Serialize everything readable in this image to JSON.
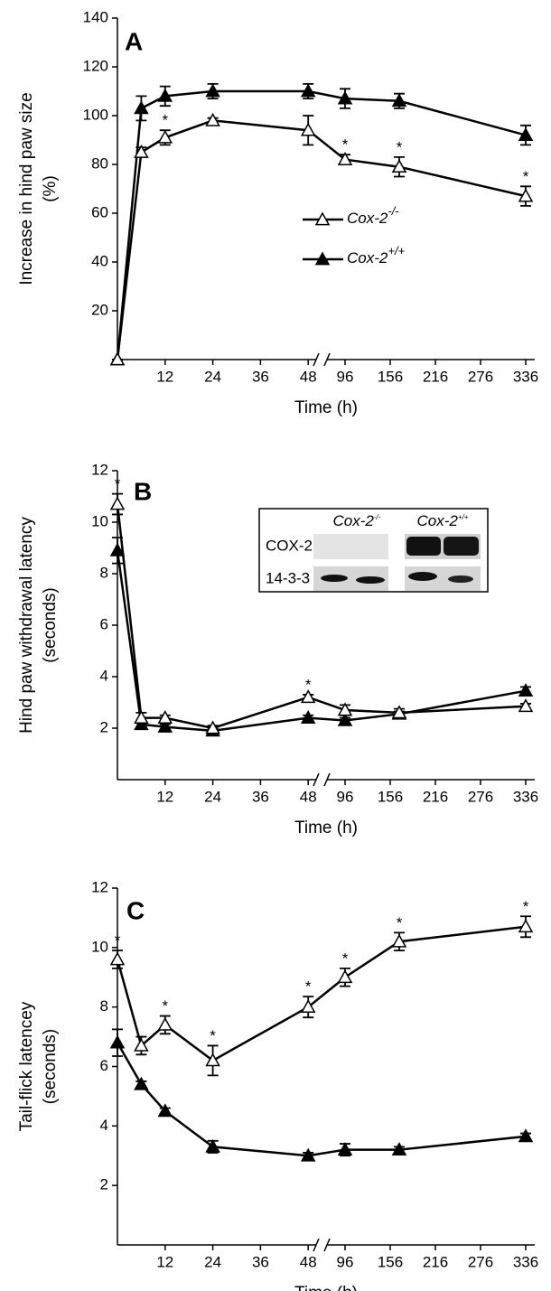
{
  "chart_data": [
    {
      "type": "line",
      "panel_label": "A",
      "ylabel": [
        "Increase in hind paw size",
        "(%)"
      ],
      "xlabel": "Time (h)",
      "x": [
        0,
        6,
        12,
        24,
        48,
        96,
        168,
        336
      ],
      "x_segments": [
        {
          "xlim": [
            0,
            50
          ],
          "xticks": [
            12,
            24,
            36,
            48
          ]
        },
        {
          "xlim": [
            72,
            348
          ],
          "xticks": [
            96,
            156,
            216,
            276,
            336
          ]
        }
      ],
      "ylim": [
        0,
        140
      ],
      "yticks": [
        20,
        40,
        60,
        80,
        100,
        120,
        140
      ],
      "grid": false,
      "legend": "center",
      "significance_label": "*",
      "series": [
        {
          "name": "Cox-2",
          "superscript": "+/+",
          "marker": "filled-triangle",
          "color": "#000000",
          "values": [
            0,
            103,
            108,
            110,
            110,
            107,
            106,
            92
          ],
          "errors": [
            0,
            5,
            4,
            3,
            3,
            4,
            3,
            4
          ],
          "significant": [
            false,
            false,
            false,
            false,
            false,
            false,
            false,
            false
          ]
        },
        {
          "name": "Cox-2",
          "superscript": "-/-",
          "marker": "open-triangle",
          "color": "#000000",
          "values": [
            0,
            85,
            91,
            98,
            94,
            82,
            79,
            67
          ],
          "errors": [
            0,
            2,
            3,
            1,
            6,
            2,
            4,
            4
          ],
          "significant": [
            false,
            false,
            true,
            false,
            false,
            true,
            true,
            true
          ]
        }
      ]
    },
    {
      "type": "line",
      "panel_label": "B",
      "ylabel": [
        "Hind paw withdrawal latency",
        "(seconds)"
      ],
      "xlabel": "Time (h)",
      "x": [
        0,
        6,
        12,
        24,
        48,
        96,
        168,
        336
      ],
      "x_segments": [
        {
          "xlim": [
            0,
            50
          ],
          "xticks": [
            12,
            24,
            36,
            48
          ]
        },
        {
          "xlim": [
            72,
            348
          ],
          "xticks": [
            96,
            156,
            216,
            276,
            336
          ]
        }
      ],
      "ylim": [
        0,
        12
      ],
      "yticks": [
        2,
        4,
        6,
        8,
        10,
        12
      ],
      "grid": false,
      "significance_label": "*",
      "inset": {
        "columns": [
          {
            "name": "Cox-2",
            "superscript": "-/-"
          },
          {
            "name": "Cox-2",
            "superscript": "+/+"
          }
        ],
        "rows": [
          "COX-2",
          "14-3-3"
        ]
      },
      "series": [
        {
          "marker": "filled-triangle",
          "color": "#000000",
          "values": [
            8.9,
            2.15,
            2.05,
            1.9,
            2.4,
            2.3,
            2.55,
            3.45
          ],
          "errors": [
            0.5,
            0.1,
            0.1,
            0.1,
            0.1,
            0.1,
            0.1,
            0.15
          ],
          "significant": [
            false,
            false,
            false,
            false,
            false,
            false,
            false,
            false
          ]
        },
        {
          "marker": "open-triangle",
          "color": "#000000",
          "values": [
            10.7,
            2.4,
            2.4,
            2.0,
            3.2,
            2.7,
            2.6,
            2.85
          ],
          "errors": [
            0.4,
            0.2,
            0.1,
            0.1,
            0.1,
            0.2,
            0.15,
            0.1
          ],
          "significant": [
            true,
            false,
            false,
            false,
            true,
            false,
            false,
            false
          ]
        }
      ]
    },
    {
      "type": "line",
      "panel_label": "C",
      "ylabel": [
        "Tail-flick latencey",
        "(seconds)"
      ],
      "xlabel": "Time (h)",
      "x": [
        0,
        6,
        12,
        24,
        48,
        96,
        168,
        336
      ],
      "x_segments": [
        {
          "xlim": [
            0,
            50
          ],
          "xticks": [
            12,
            24,
            36,
            48
          ]
        },
        {
          "xlim": [
            72,
            348
          ],
          "xticks": [
            96,
            156,
            216,
            276,
            336
          ]
        }
      ],
      "ylim": [
        0,
        12
      ],
      "yticks": [
        2,
        4,
        6,
        8,
        10,
        12
      ],
      "grid": false,
      "significance_label": "*",
      "series": [
        {
          "marker": "filled-triangle",
          "color": "#000000",
          "values": [
            6.8,
            5.4,
            4.5,
            3.3,
            3.0,
            3.2,
            3.2,
            3.65
          ],
          "errors": [
            0.45,
            0.1,
            0.1,
            0.2,
            0.1,
            0.2,
            0.1,
            0.1
          ],
          "significant": [
            false,
            false,
            false,
            false,
            false,
            false,
            false,
            false
          ]
        },
        {
          "marker": "open-triangle",
          "color": "#000000",
          "values": [
            9.6,
            6.7,
            7.4,
            6.2,
            8.0,
            9.0,
            10.2,
            10.7
          ],
          "errors": [
            0.3,
            0.3,
            0.3,
            0.5,
            0.35,
            0.3,
            0.3,
            0.35
          ],
          "significant": [
            true,
            false,
            true,
            true,
            true,
            true,
            true,
            true
          ]
        }
      ]
    }
  ]
}
